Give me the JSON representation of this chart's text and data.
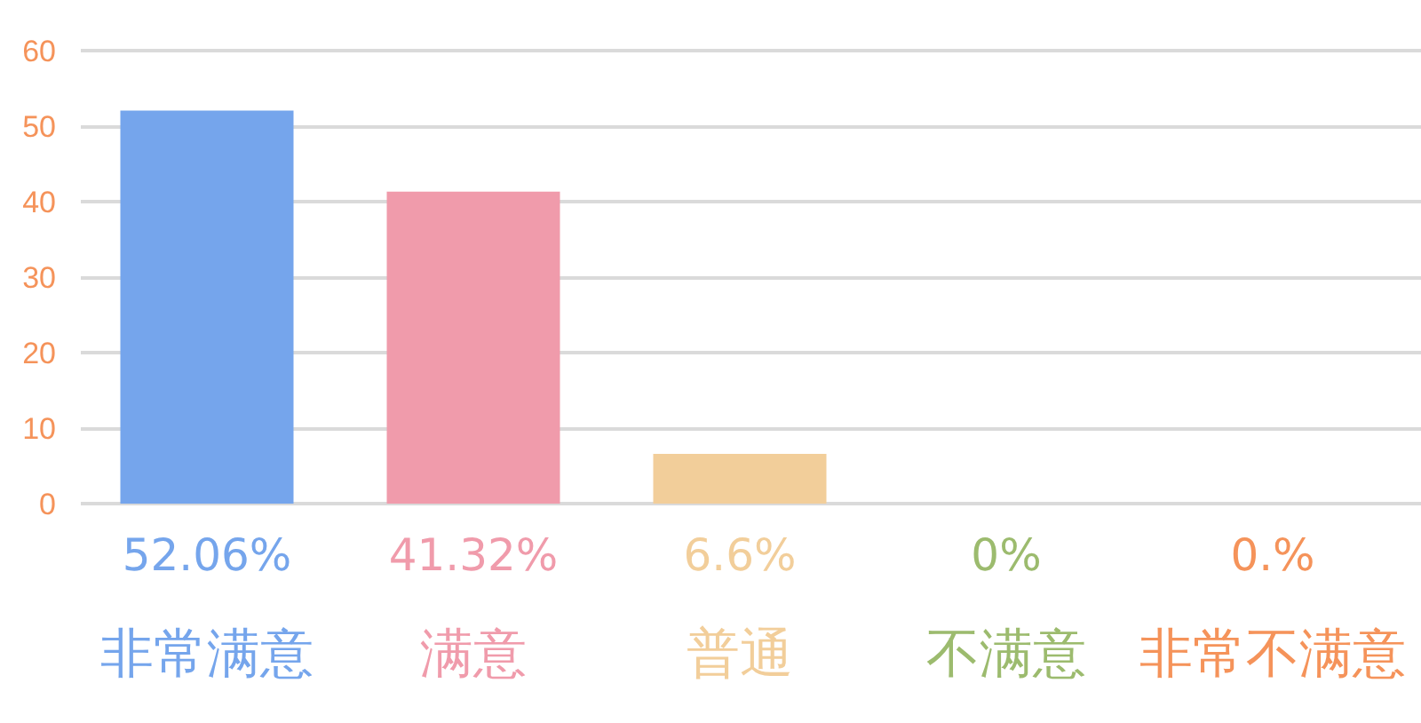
{
  "chart_data": {
    "type": "bar",
    "categories": [
      "非常满意",
      "满意",
      "普通",
      "不满意",
      "非常不满意"
    ],
    "values": [
      52.06,
      41.32,
      6.6,
      0,
      0
    ],
    "value_labels": [
      "52.06%",
      "41.32%",
      "6.6%",
      "0%",
      "0.%"
    ],
    "colors": [
      "#75a5ec",
      "#f09bab",
      "#f2ce9a",
      "#9cbb6e",
      "#f5935a"
    ],
    "ylim": [
      0,
      60
    ],
    "yticks": [
      0,
      10,
      20,
      30,
      40,
      50,
      60
    ],
    "grid": "y"
  }
}
